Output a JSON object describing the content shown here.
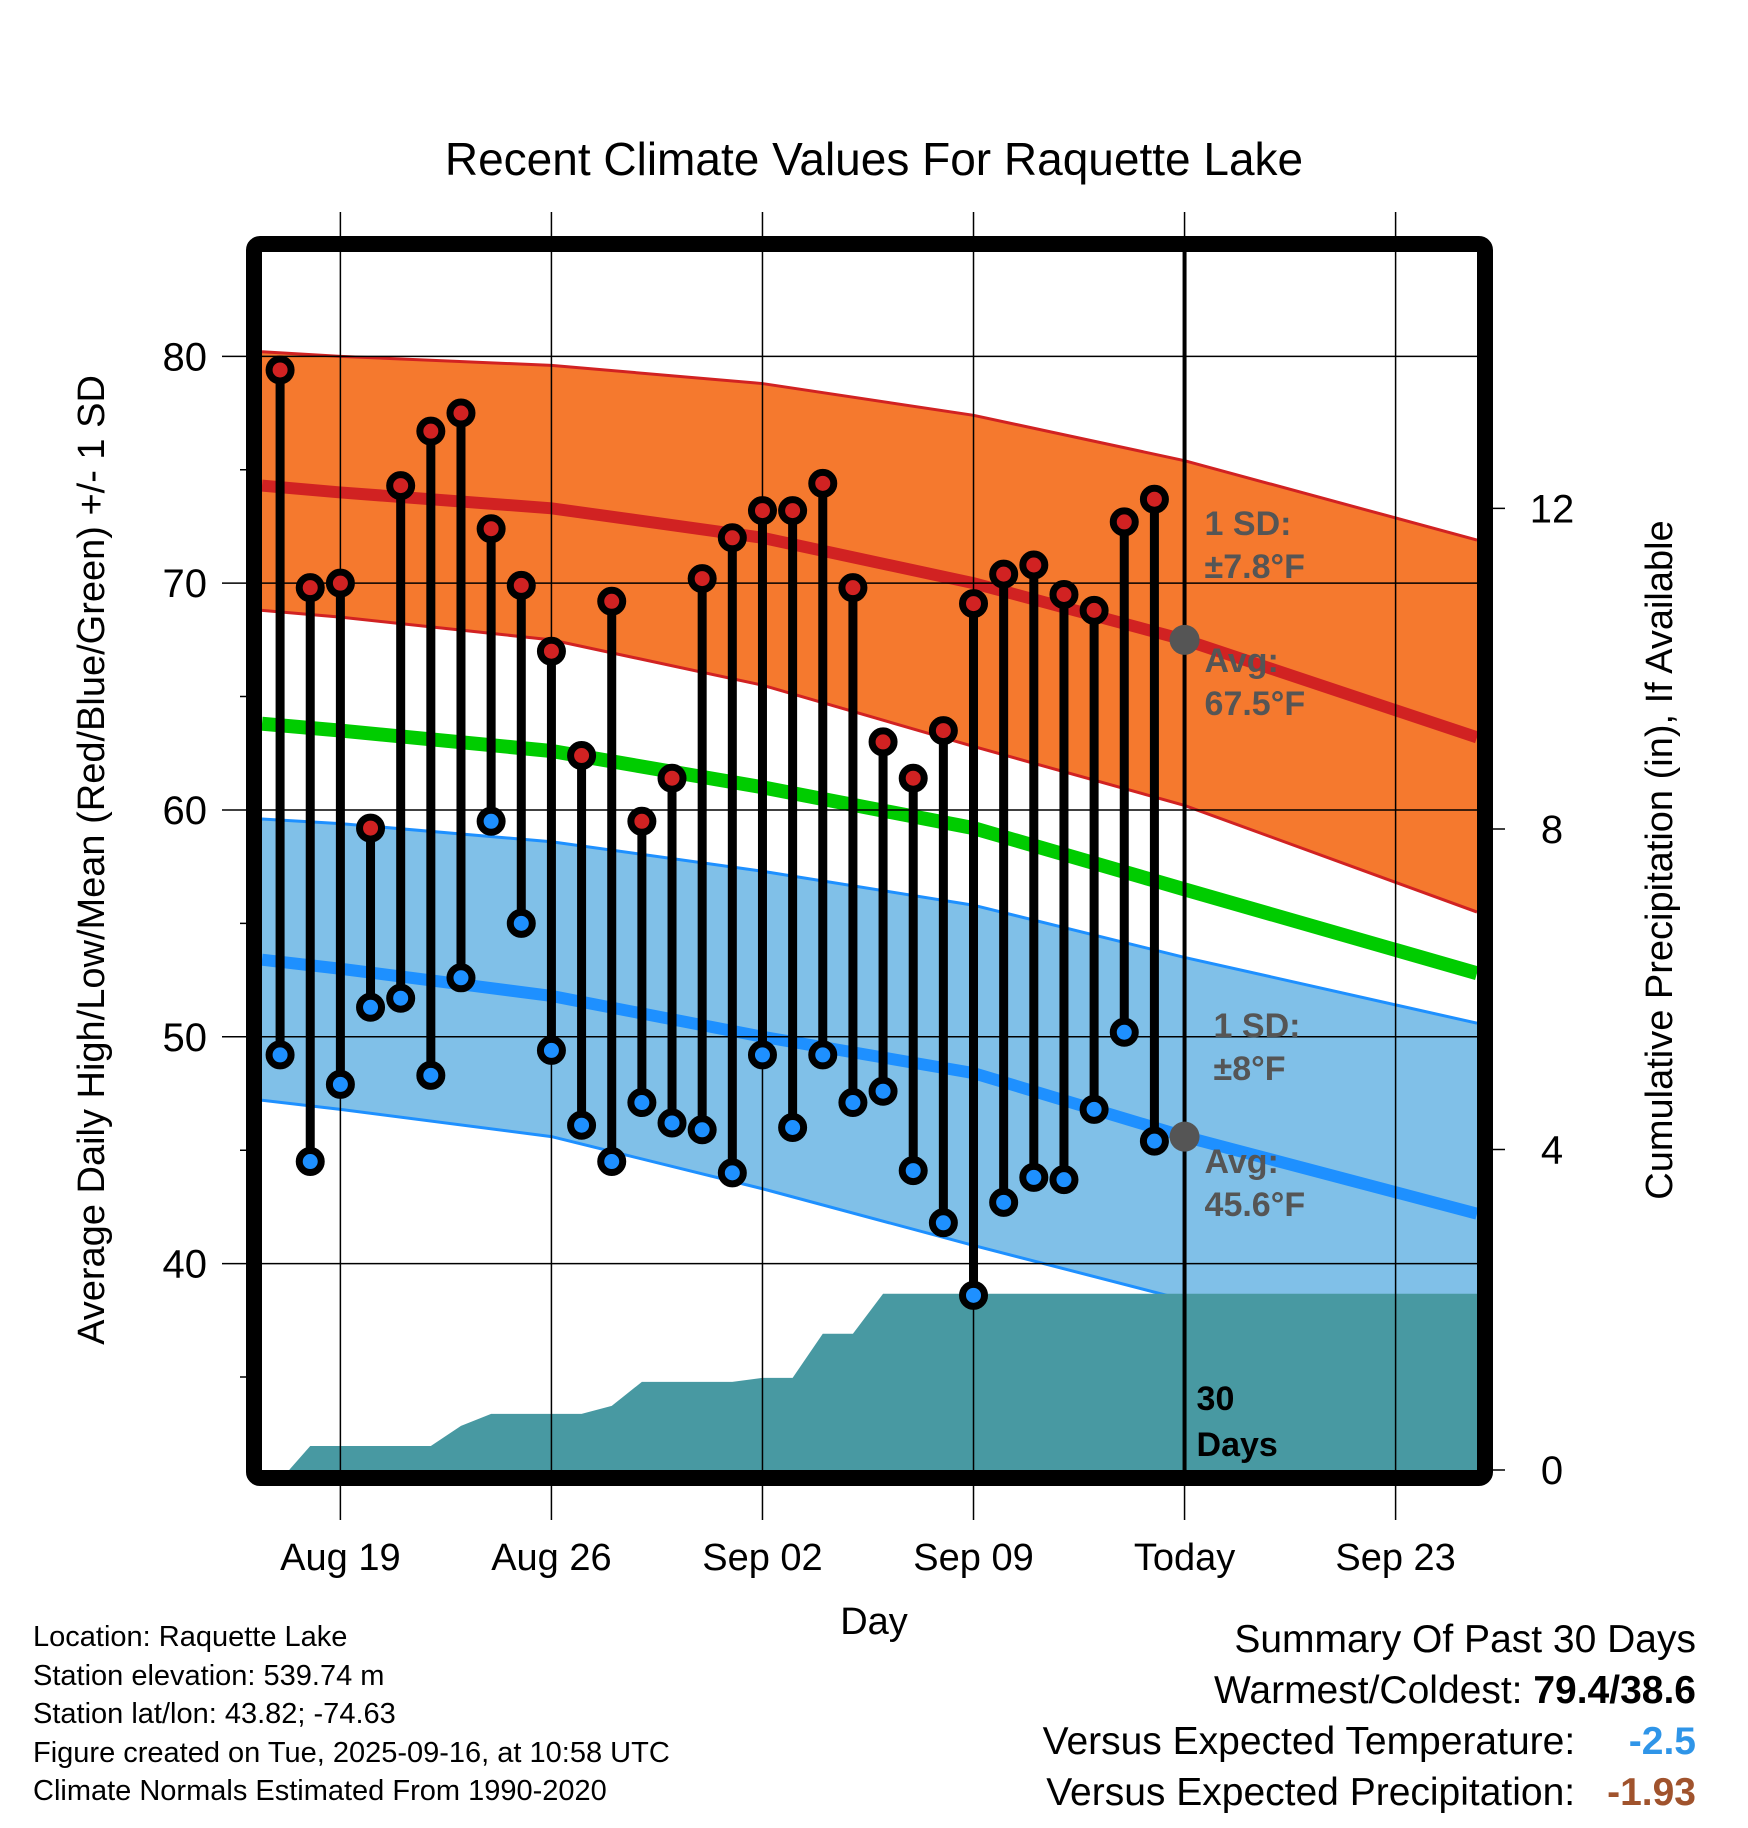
{
  "chart_data": {
    "type": "bar",
    "title": "Recent Climate Values For Raquette Lake",
    "xlabel": "Day",
    "ylabel": "Average Daily High/Low/Mean (Red/Blue/Green) +/- 1 SD",
    "y2label": "Cumulative Precipitation (in), If Available",
    "ylim": [
      30.9,
      84.6
    ],
    "y2lim": [
      0,
      15.2
    ],
    "yticks": [
      40,
      50,
      60,
      70,
      80
    ],
    "y2ticks": [
      0,
      4,
      8,
      12
    ],
    "xlim": [
      -0.6,
      39.7
    ],
    "xticks": [
      {
        "day": 2,
        "label": "Aug 19"
      },
      {
        "day": 9,
        "label": "Aug 26"
      },
      {
        "day": 16,
        "label": "Sep 02"
      },
      {
        "day": 23,
        "label": "Sep 09"
      },
      {
        "day": 30,
        "label": "Today"
      },
      {
        "day": 37,
        "label": "Sep 23"
      }
    ],
    "x_day0": "Aug 17",
    "today_day": 30,
    "grid": true,
    "observed": {
      "days": [
        0,
        1,
        2,
        3,
        4,
        5,
        6,
        7,
        8,
        9,
        10,
        11,
        12,
        13,
        14,
        15,
        16,
        17,
        18,
        19,
        20,
        21,
        22,
        23,
        24,
        25,
        26,
        27,
        28,
        29
      ],
      "high": [
        79.4,
        69.8,
        70.0,
        59.2,
        74.3,
        76.7,
        77.5,
        72.4,
        69.9,
        67.0,
        62.4,
        69.2,
        59.5,
        61.4,
        70.2,
        72.0,
        73.2,
        73.2,
        74.4,
        69.8,
        63.0,
        61.4,
        63.5,
        69.1,
        70.4,
        70.8,
        69.5,
        68.8,
        72.7,
        73.7
      ],
      "low": [
        49.2,
        44.5,
        47.9,
        51.3,
        51.7,
        48.3,
        52.6,
        59.5,
        55.0,
        49.4,
        46.1,
        44.5,
        47.1,
        46.2,
        45.9,
        44.0,
        49.2,
        46.0,
        49.2,
        47.1,
        47.6,
        44.1,
        41.8,
        38.6,
        42.7,
        43.8,
        43.7,
        46.8,
        50.2,
        45.4
      ]
    },
    "normals": {
      "days": [
        -0.6,
        2,
        9,
        16,
        23,
        30,
        39.7
      ],
      "high_plus_sd": [
        80.2,
        80.0,
        79.6,
        78.8,
        77.4,
        75.4,
        71.9
      ],
      "high_avg": [
        74.3,
        74.0,
        73.3,
        72.0,
        70.0,
        67.5,
        63.2
      ],
      "high_minus_sd": [
        68.8,
        68.5,
        67.5,
        65.5,
        62.8,
        60.2,
        55.5
      ],
      "mean": [
        63.8,
        63.5,
        62.6,
        61.0,
        59.2,
        56.5,
        52.8
      ],
      "low_plus_sd": [
        59.6,
        59.4,
        58.6,
        57.3,
        55.8,
        53.5,
        50.6
      ],
      "low_avg": [
        53.4,
        53.0,
        51.8,
        50.0,
        48.4,
        45.6,
        42.2
      ],
      "low_minus_sd": [
        47.2,
        46.8,
        45.6,
        43.3,
        40.8,
        38.4,
        34.4
      ]
    },
    "precip_cumulative": {
      "days": [
        0.3,
        1.0,
        5.0,
        6.0,
        7.0,
        9.0,
        10.0,
        11.0,
        12.0,
        15.0,
        16.0,
        17.0,
        18.0,
        19.0,
        20.0,
        39.7
      ],
      "values": [
        0.0,
        0.3,
        0.3,
        0.55,
        0.7,
        0.7,
        0.7,
        0.8,
        1.1,
        1.1,
        1.15,
        1.15,
        1.7,
        1.7,
        2.2,
        2.2
      ]
    },
    "annotations": {
      "high_sd_label": "1 SD:",
      "high_sd_value": "±7.8°F",
      "high_avg_label": "Avg:",
      "high_avg_value": "67.5°F",
      "low_sd_label": "1 SD:",
      "low_sd_value": "±8°F",
      "low_avg_label": "Avg:",
      "low_avg_value": "45.6°F",
      "precip_label_1": "30",
      "precip_label_2": "Days"
    },
    "colors": {
      "high_band": "#f5792e",
      "high_line": "#d12222",
      "mean_line": "#00cc00",
      "low_band": "#80c0e8",
      "low_line": "#1e90ff",
      "precip_fill": "#4899a2",
      "today_marker": "#555555"
    }
  },
  "footer": {
    "location": "Location: Raquette Lake",
    "elevation": "Station elevation: 539.74 m",
    "latlon": "Station lat/lon: 43.82; -74.63",
    "created": "Figure created on Tue, 2025-09-16, at 10:58 UTC",
    "normals": "Climate Normals Estimated From 1990-2020"
  },
  "summary": {
    "title": "Summary Of Past 30 Days",
    "warmest_label": "Warmest/Coldest:",
    "warmest_value": "79.4/38.6",
    "temp_label": "Versus Expected Temperature:",
    "temp_value": "-2.5",
    "temp_color": "#2f95e8",
    "precip_label": "Versus Expected Precipitation:",
    "precip_value": "-1.93",
    "precip_color": "#a0532d"
  }
}
